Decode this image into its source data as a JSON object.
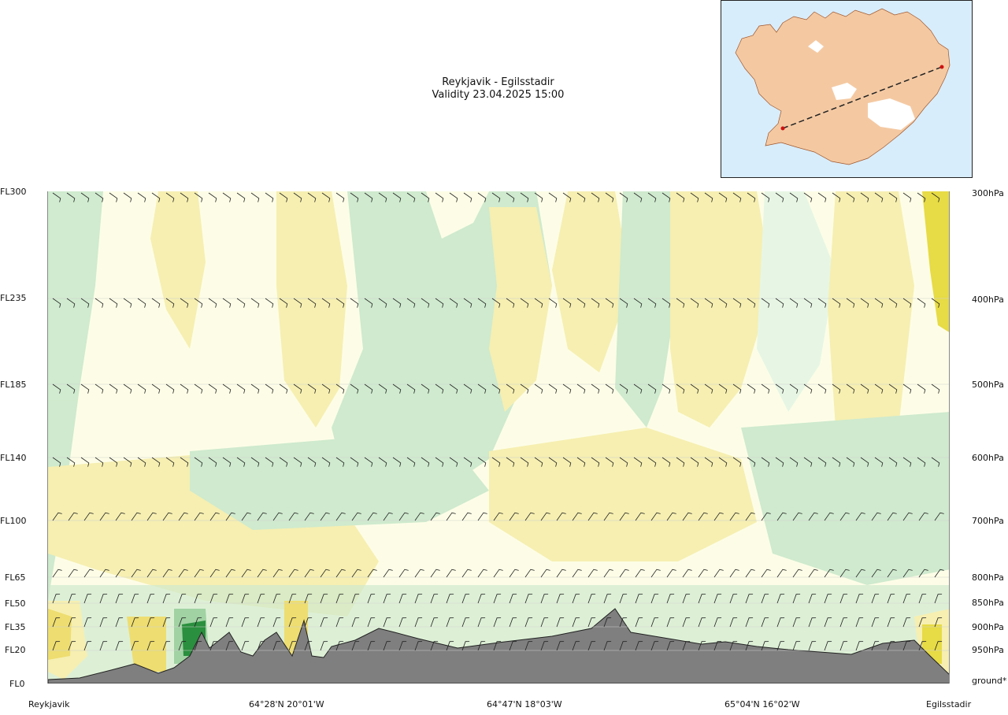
{
  "header": {
    "route": "Reykjavik - Egilsstadir",
    "validity": "Validity 23.04.2025 15:00"
  },
  "left_axis": [
    "FL300",
    "FL235",
    "FL185",
    "FL140",
    "FL100",
    "FL65",
    "FL50",
    "FL35",
    "FL20",
    "FL0"
  ],
  "right_axis": [
    "300hPa",
    "400hPa",
    "500hPa",
    "600hPa",
    "700hPa",
    "800hPa",
    "850hPa",
    "900hPa",
    "950hPa",
    "ground*"
  ],
  "bottom_axis": [
    "Reykjavik",
    "64°28'N 20°01'W",
    "64°47'N 18°03'W",
    "65°04'N 16°02'W",
    "Egilsstadir"
  ],
  "colors": {
    "background": "#fdfde7",
    "green_light": "#cdeacd",
    "green_pale": "#e6f6e4",
    "green_mid": "#9dd0a0",
    "green_dark": "#1f8a35",
    "yellow_light": "#f6efaf",
    "yellow_mid": "#eedc6a",
    "yellow_dark": "#e6da3e",
    "terrain": "#7f7f7f",
    "inset_sea": "#d8edfb",
    "route_point": "#d01010"
  },
  "inset_map": {
    "icons": [
      "iceland-map-icon",
      "route-line-icon",
      "start-point-icon",
      "end-point-icon"
    ]
  }
}
